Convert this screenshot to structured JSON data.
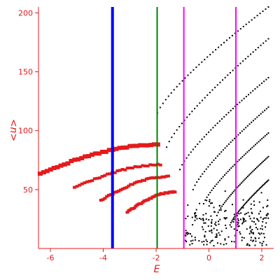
{
  "chart_data": {
    "type": "scatter",
    "xlabel": "E",
    "ylabel": "<n>",
    "xlim": [
      -6.45,
      2.45
    ],
    "ylim": [
      0,
      205
    ],
    "xticks": [
      -6,
      -4,
      -2,
      0,
      2
    ],
    "yticks": [
      50,
      100,
      150,
      200
    ],
    "grid": false,
    "colors": {
      "axis": "#e41a1c",
      "red_markers": "#e41a1c",
      "dots": "#000000"
    },
    "vertical_lines": [
      {
        "x": -3.65,
        "color": "#0000ff"
      },
      {
        "x": -1.96,
        "color": "#008000"
      },
      {
        "x": -0.95,
        "color": "#ff00ff"
      },
      {
        "x": 1.02,
        "color": "#ff00ff"
      }
    ],
    "red_bands": [
      {
        "x0": -6.4,
        "y0": 64,
        "x1": -1.95,
        "y1": 88
      },
      {
        "x0": -5.1,
        "y0": 52,
        "x1": -1.85,
        "y1": 71
      },
      {
        "x0": -4.1,
        "y0": 41,
        "x1": -1.55,
        "y1": 61
      },
      {
        "x0": -3.1,
        "y0": 31,
        "x1": -1.3,
        "y1": 48
      }
    ],
    "black_families": [
      {
        "x0": -1.95,
        "y0": 115,
        "x1": 2.25,
        "y1": 205
      },
      {
        "x0": -1.6,
        "y0": 86,
        "x1": 2.25,
        "y1": 178
      },
      {
        "x0": -1.1,
        "y0": 67,
        "x1": 2.25,
        "y1": 145
      },
      {
        "x0": -0.6,
        "y0": 50,
        "x1": 2.25,
        "y1": 120
      },
      {
        "x0": -0.2,
        "y0": 38,
        "x1": 2.25,
        "y1": 98
      },
      {
        "x0": 0.3,
        "y0": 28,
        "x1": 2.25,
        "y1": 78
      },
      {
        "x0": 0.8,
        "y0": 20,
        "x1": 2.25,
        "y1": 58
      }
    ]
  }
}
